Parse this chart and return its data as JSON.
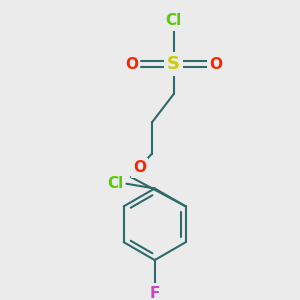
{
  "background_color": "#ebebeb",
  "bond_color": "#2d6b6b",
  "bond_width": 1.5,
  "atoms": {
    "Cl_sulfonyl": {
      "label": "Cl",
      "color": "#55cc00",
      "fontsize": 11
    },
    "S": {
      "label": "S",
      "color": "#cccc00",
      "fontsize": 13
    },
    "O1": {
      "label": "O",
      "color": "#ff2200",
      "fontsize": 11
    },
    "O2": {
      "label": "O",
      "color": "#ff2200",
      "fontsize": 11
    },
    "O_ether": {
      "label": "O",
      "color": "#ff2200",
      "fontsize": 11
    },
    "Cl_aryl": {
      "label": "Cl",
      "color": "#55cc00",
      "fontsize": 11
    },
    "F": {
      "label": "F",
      "color": "#cc44cc",
      "fontsize": 11
    }
  },
  "figsize": [
    3.0,
    3.0
  ],
  "dpi": 100
}
